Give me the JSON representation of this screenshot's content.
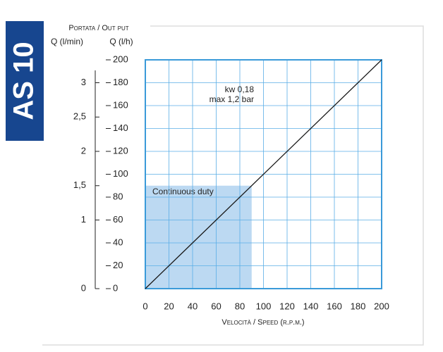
{
  "chart_data": {
    "type": "line",
    "title": "AS 10",
    "output_label": "Portata / Out put",
    "ylabel": "Q (l/h)",
    "y2label": "Q (l/min)",
    "xlabel": "Velocità / Speed (r.p.m.)",
    "x": [
      0,
      200
    ],
    "series": [
      {
        "color": "#1a1a1a",
        "values": [
          0,
          200
        ]
      }
    ],
    "xlim": [
      0,
      200
    ],
    "xticks": [
      0,
      20,
      40,
      60,
      80,
      100,
      120,
      140,
      160,
      180,
      200
    ],
    "ylim": [
      0,
      200
    ],
    "yticks": [
      0,
      20,
      40,
      60,
      80,
      100,
      120,
      140,
      160,
      180,
      200
    ],
    "y2lim": [
      0,
      3.3333
    ],
    "y2ticks": [
      0,
      1,
      {
        "value": 1.5,
        "label": "1,5"
      },
      2,
      {
        "value": 2.5,
        "label": "2,5"
      },
      3
    ],
    "grid": true,
    "shaded_region": {
      "label": "Continuous duty",
      "xlim": [
        0,
        90
      ],
      "ylim": [
        0,
        90
      ],
      "color": "#bcd9f2"
    },
    "annotations": [
      "kw 0,18",
      "max 1,2 bar"
    ]
  }
}
